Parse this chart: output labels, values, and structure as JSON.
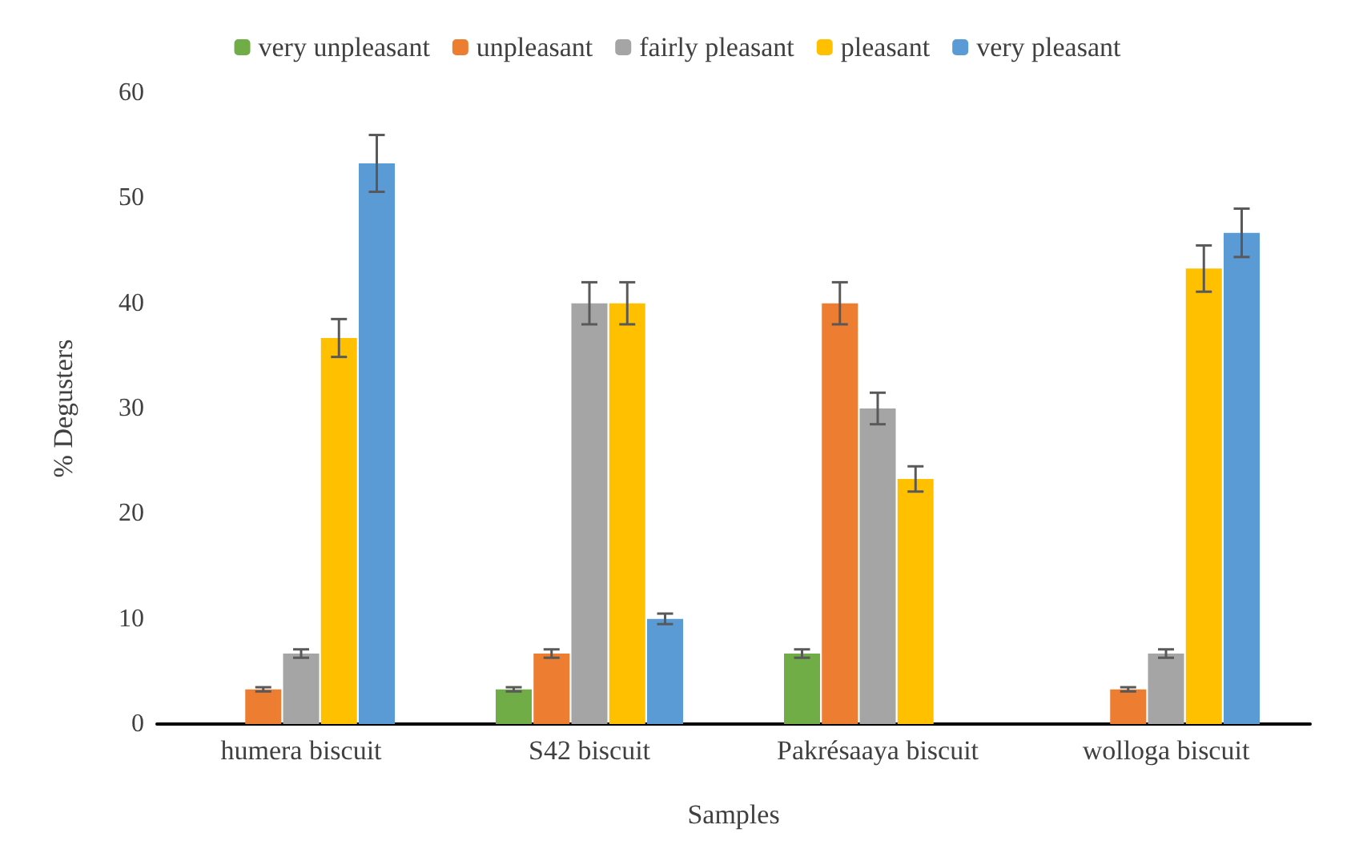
{
  "chart_data": {
    "type": "bar",
    "xlabel": "Samples",
    "ylabel": "% Degusters",
    "categories": [
      "humera biscuit",
      "S42 biscuit",
      "Pakrésaaya biscuit",
      "wolloga biscuit"
    ],
    "series": [
      {
        "name": "very unpleasant",
        "color": "#70ad47",
        "values": [
          null,
          3.3,
          6.7,
          null
        ],
        "errors": [
          null,
          0.2,
          0.4,
          null
        ]
      },
      {
        "name": "unpleasant",
        "color": "#ed7d31",
        "values": [
          3.3,
          6.7,
          40,
          3.3
        ],
        "errors": [
          0.2,
          0.4,
          2,
          0.2
        ]
      },
      {
        "name": "fairly pleasant",
        "color": "#a5a5a5",
        "values": [
          6.7,
          40,
          30,
          6.7
        ],
        "errors": [
          0.4,
          2,
          1.5,
          0.4
        ]
      },
      {
        "name": "pleasant",
        "color": "#ffc000",
        "values": [
          36.7,
          40,
          23.3,
          43.3
        ],
        "errors": [
          1.8,
          2,
          1.2,
          2.2
        ]
      },
      {
        "name": "very pleasant",
        "color": "#5b9bd5",
        "values": [
          53.3,
          10,
          null,
          46.7
        ],
        "errors": [
          2.7,
          0.5,
          null,
          2.3
        ]
      }
    ],
    "ylim": [
      0,
      60
    ],
    "yticks": [
      0,
      10,
      20,
      30,
      40,
      50,
      60
    ],
    "grid": false,
    "legend": "top"
  }
}
